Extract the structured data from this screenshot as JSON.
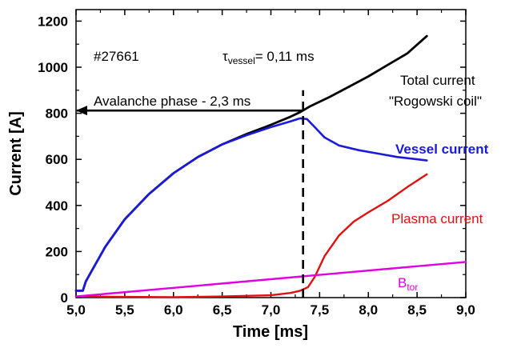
{
  "chart_data": {
    "type": "line",
    "xlabel": "Time [ms]",
    "ylabel": "Current [A]",
    "xlim": [
      5.0,
      9.0
    ],
    "ylim": [
      0,
      1250
    ],
    "x_ticks": [
      "5,0",
      "5,5",
      "6,0",
      "6,5",
      "7,0",
      "7,5",
      "8,0",
      "8,5",
      "9,0"
    ],
    "x_tick_values": [
      5.0,
      5.5,
      6.0,
      6.5,
      7.0,
      7.5,
      8.0,
      8.5,
      9.0
    ],
    "y_ticks": [
      "0",
      "200",
      "400",
      "600",
      "800",
      "1000",
      "1200"
    ],
    "y_tick_values": [
      0,
      200,
      400,
      600,
      800,
      1000,
      1200
    ],
    "grid": false,
    "series": [
      {
        "name": "Total current \"Rogowski coil\"",
        "color": "#000000",
        "points": [
          [
            5.0,
            30
          ],
          [
            5.07,
            30
          ],
          [
            5.1,
            70
          ],
          [
            5.3,
            220
          ],
          [
            5.5,
            340
          ],
          [
            5.75,
            450
          ],
          [
            6.0,
            540
          ],
          [
            6.25,
            610
          ],
          [
            6.5,
            665
          ],
          [
            6.75,
            710
          ],
          [
            7.0,
            750
          ],
          [
            7.2,
            785
          ],
          [
            7.3,
            805
          ],
          [
            7.4,
            830
          ],
          [
            7.6,
            870
          ],
          [
            7.8,
            915
          ],
          [
            8.0,
            960
          ],
          [
            8.2,
            1010
          ],
          [
            8.4,
            1060
          ],
          [
            8.6,
            1135
          ]
        ]
      },
      {
        "name": "Vessel current",
        "color": "#1a1adc",
        "points": [
          [
            5.0,
            30
          ],
          [
            5.07,
            30
          ],
          [
            5.1,
            70
          ],
          [
            5.3,
            220
          ],
          [
            5.5,
            340
          ],
          [
            5.75,
            450
          ],
          [
            6.0,
            540
          ],
          [
            6.25,
            610
          ],
          [
            6.5,
            665
          ],
          [
            6.75,
            705
          ],
          [
            7.0,
            740
          ],
          [
            7.2,
            765
          ],
          [
            7.3,
            778
          ],
          [
            7.37,
            775
          ],
          [
            7.45,
            740
          ],
          [
            7.55,
            695
          ],
          [
            7.7,
            660
          ],
          [
            7.9,
            640
          ],
          [
            8.1,
            625
          ],
          [
            8.3,
            610
          ],
          [
            8.6,
            595
          ]
        ]
      },
      {
        "name": "Plasma current",
        "color": "#e01010",
        "points": [
          [
            5.0,
            5
          ],
          [
            5.5,
            3
          ],
          [
            6.0,
            2
          ],
          [
            6.5,
            5
          ],
          [
            7.0,
            10
          ],
          [
            7.2,
            20
          ],
          [
            7.3,
            30
          ],
          [
            7.38,
            45
          ],
          [
            7.45,
            90
          ],
          [
            7.55,
            180
          ],
          [
            7.7,
            270
          ],
          [
            7.85,
            330
          ],
          [
            8.0,
            370
          ],
          [
            8.2,
            420
          ],
          [
            8.4,
            480
          ],
          [
            8.6,
            535
          ]
        ]
      },
      {
        "name": "B_tor",
        "color": "#e000e0",
        "points": [
          [
            5.0,
            5
          ],
          [
            9.0,
            155
          ]
        ]
      }
    ],
    "vline": {
      "x": 7.33,
      "y_max": 900,
      "style": "dashed",
      "color": "#000000"
    },
    "arrow": {
      "x_from": 7.33,
      "x_to": 5.0,
      "y": 812,
      "label": "Avalanche phase - 2,3 ms"
    },
    "annotations": {
      "shot": "#27661",
      "tau_symbol": "τ",
      "tau_sub": "vessel",
      "tau_value": "= 0,11 ms",
      "total_line1": "Total current",
      "total_line2": "\"Rogowski coil\"",
      "vessel": "Vessel current",
      "plasma": "Plasma current",
      "btor_main": "B",
      "btor_sub": "tor"
    }
  }
}
